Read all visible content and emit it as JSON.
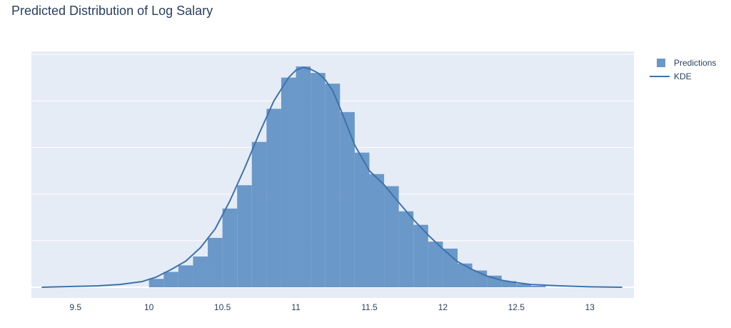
{
  "title": "Predicted Distribution of Log Salary",
  "legend": {
    "items": [
      {
        "label": "Predictions",
        "kind": "bar"
      },
      {
        "label": "KDE",
        "kind": "line"
      }
    ]
  },
  "colors": {
    "plot_bg": "#e5ecf6",
    "bar": "#6a98c8",
    "line": "#3f72ac",
    "grid": "#ffffff",
    "text": "#2a3f5f"
  },
  "chart_data": {
    "type": "bar",
    "title": "Predicted Distribution of Log Salary",
    "xlabel": "",
    "ylabel": "",
    "xlim": [
      9.2,
      13.3
    ],
    "ylim": [
      0,
      5.0
    ],
    "x_ticks": [
      9.5,
      10,
      10.5,
      11,
      11.5,
      12,
      12.5,
      13
    ],
    "y_gridlines": [
      0,
      1,
      2,
      3,
      4,
      5
    ],
    "grid": true,
    "legend_position": "top-right",
    "bin_width": 0.1,
    "series": [
      {
        "name": "Predictions",
        "type": "histogram",
        "bin_starts": [
          10.0,
          10.1,
          10.2,
          10.3,
          10.4,
          10.5,
          10.6,
          10.7,
          10.8,
          10.9,
          11.0,
          11.1,
          11.2,
          11.3,
          11.4,
          11.5,
          11.6,
          11.7,
          11.8,
          11.9,
          12.0,
          12.1,
          12.2,
          12.3,
          12.4,
          12.5,
          12.6
        ],
        "values": [
          0.18,
          0.33,
          0.47,
          0.66,
          1.06,
          1.69,
          2.19,
          3.12,
          3.83,
          4.5,
          4.74,
          4.6,
          4.37,
          3.76,
          2.89,
          2.43,
          2.17,
          1.63,
          1.34,
          0.98,
          0.83,
          0.51,
          0.36,
          0.25,
          0.13,
          0.07,
          0.03
        ]
      },
      {
        "name": "KDE",
        "type": "line",
        "x": [
          9.27,
          9.5,
          9.65,
          9.8,
          9.95,
          10.05,
          10.15,
          10.25,
          10.35,
          10.45,
          10.55,
          10.65,
          10.75,
          10.85,
          10.95,
          11.0,
          11.05,
          11.1,
          11.15,
          11.2,
          11.25,
          11.3,
          11.4,
          11.5,
          11.6,
          11.7,
          11.8,
          11.9,
          12.0,
          12.1,
          12.2,
          12.3,
          12.4,
          12.5,
          12.6,
          12.8,
          13.0,
          13.22
        ],
        "values": [
          0.0,
          0.02,
          0.03,
          0.06,
          0.12,
          0.22,
          0.38,
          0.56,
          0.85,
          1.25,
          1.85,
          2.55,
          3.3,
          4.0,
          4.5,
          4.66,
          4.72,
          4.68,
          4.6,
          4.45,
          4.22,
          3.85,
          3.05,
          2.5,
          2.2,
          1.82,
          1.45,
          1.12,
          0.82,
          0.55,
          0.38,
          0.24,
          0.15,
          0.1,
          0.06,
          0.03,
          0.01,
          0.0
        ]
      }
    ]
  }
}
